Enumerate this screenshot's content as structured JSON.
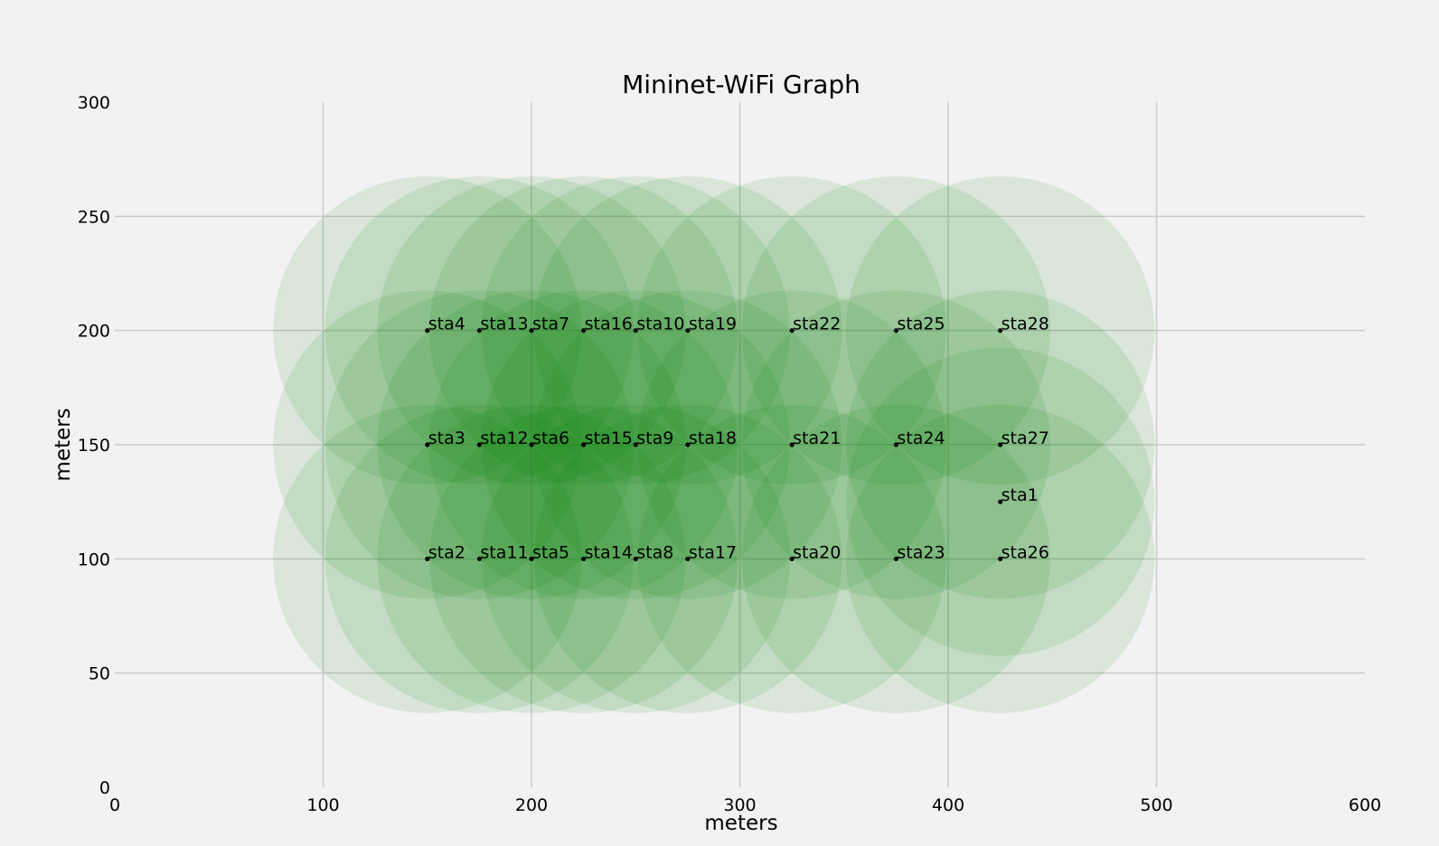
{
  "chart_data": {
    "type": "scatter",
    "title": "Mininet-WiFi Graph",
    "xlabel": "meters",
    "ylabel": "meters",
    "xlim": [
      0,
      600
    ],
    "ylim": [
      0,
      300
    ],
    "xticks": [
      0,
      100,
      200,
      300,
      400,
      500,
      600
    ],
    "yticks": [
      0,
      50,
      100,
      150,
      200,
      250,
      300
    ],
    "grid": true,
    "range_radius": 74,
    "colors": {
      "background": "#f2f2f2",
      "range_fill": "#008000",
      "point": "#000000"
    },
    "stations": [
      {
        "name": "sta1",
        "x": 425,
        "y": 125
      },
      {
        "name": "sta2",
        "x": 150,
        "y": 100
      },
      {
        "name": "sta3",
        "x": 150,
        "y": 150
      },
      {
        "name": "sta4",
        "x": 150,
        "y": 200
      },
      {
        "name": "sta5",
        "x": 200,
        "y": 100
      },
      {
        "name": "sta6",
        "x": 200,
        "y": 150
      },
      {
        "name": "sta7",
        "x": 200,
        "y": 200
      },
      {
        "name": "sta8",
        "x": 250,
        "y": 100
      },
      {
        "name": "sta9",
        "x": 250,
        "y": 150
      },
      {
        "name": "sta10",
        "x": 250,
        "y": 200
      },
      {
        "name": "sta11",
        "x": 175,
        "y": 100
      },
      {
        "name": "sta12",
        "x": 175,
        "y": 150
      },
      {
        "name": "sta13",
        "x": 175,
        "y": 200
      },
      {
        "name": "sta14",
        "x": 225,
        "y": 100
      },
      {
        "name": "sta15",
        "x": 225,
        "y": 150
      },
      {
        "name": "sta16",
        "x": 225,
        "y": 200
      },
      {
        "name": "sta17",
        "x": 275,
        "y": 100
      },
      {
        "name": "sta18",
        "x": 275,
        "y": 150
      },
      {
        "name": "sta19",
        "x": 275,
        "y": 200
      },
      {
        "name": "sta20",
        "x": 325,
        "y": 100
      },
      {
        "name": "sta21",
        "x": 325,
        "y": 150
      },
      {
        "name": "sta22",
        "x": 325,
        "y": 200
      },
      {
        "name": "sta23",
        "x": 375,
        "y": 100
      },
      {
        "name": "sta24",
        "x": 375,
        "y": 150
      },
      {
        "name": "sta25",
        "x": 375,
        "y": 200
      },
      {
        "name": "sta26",
        "x": 425,
        "y": 100
      },
      {
        "name": "sta27",
        "x": 425,
        "y": 150
      },
      {
        "name": "sta28",
        "x": 425,
        "y": 200
      }
    ]
  }
}
